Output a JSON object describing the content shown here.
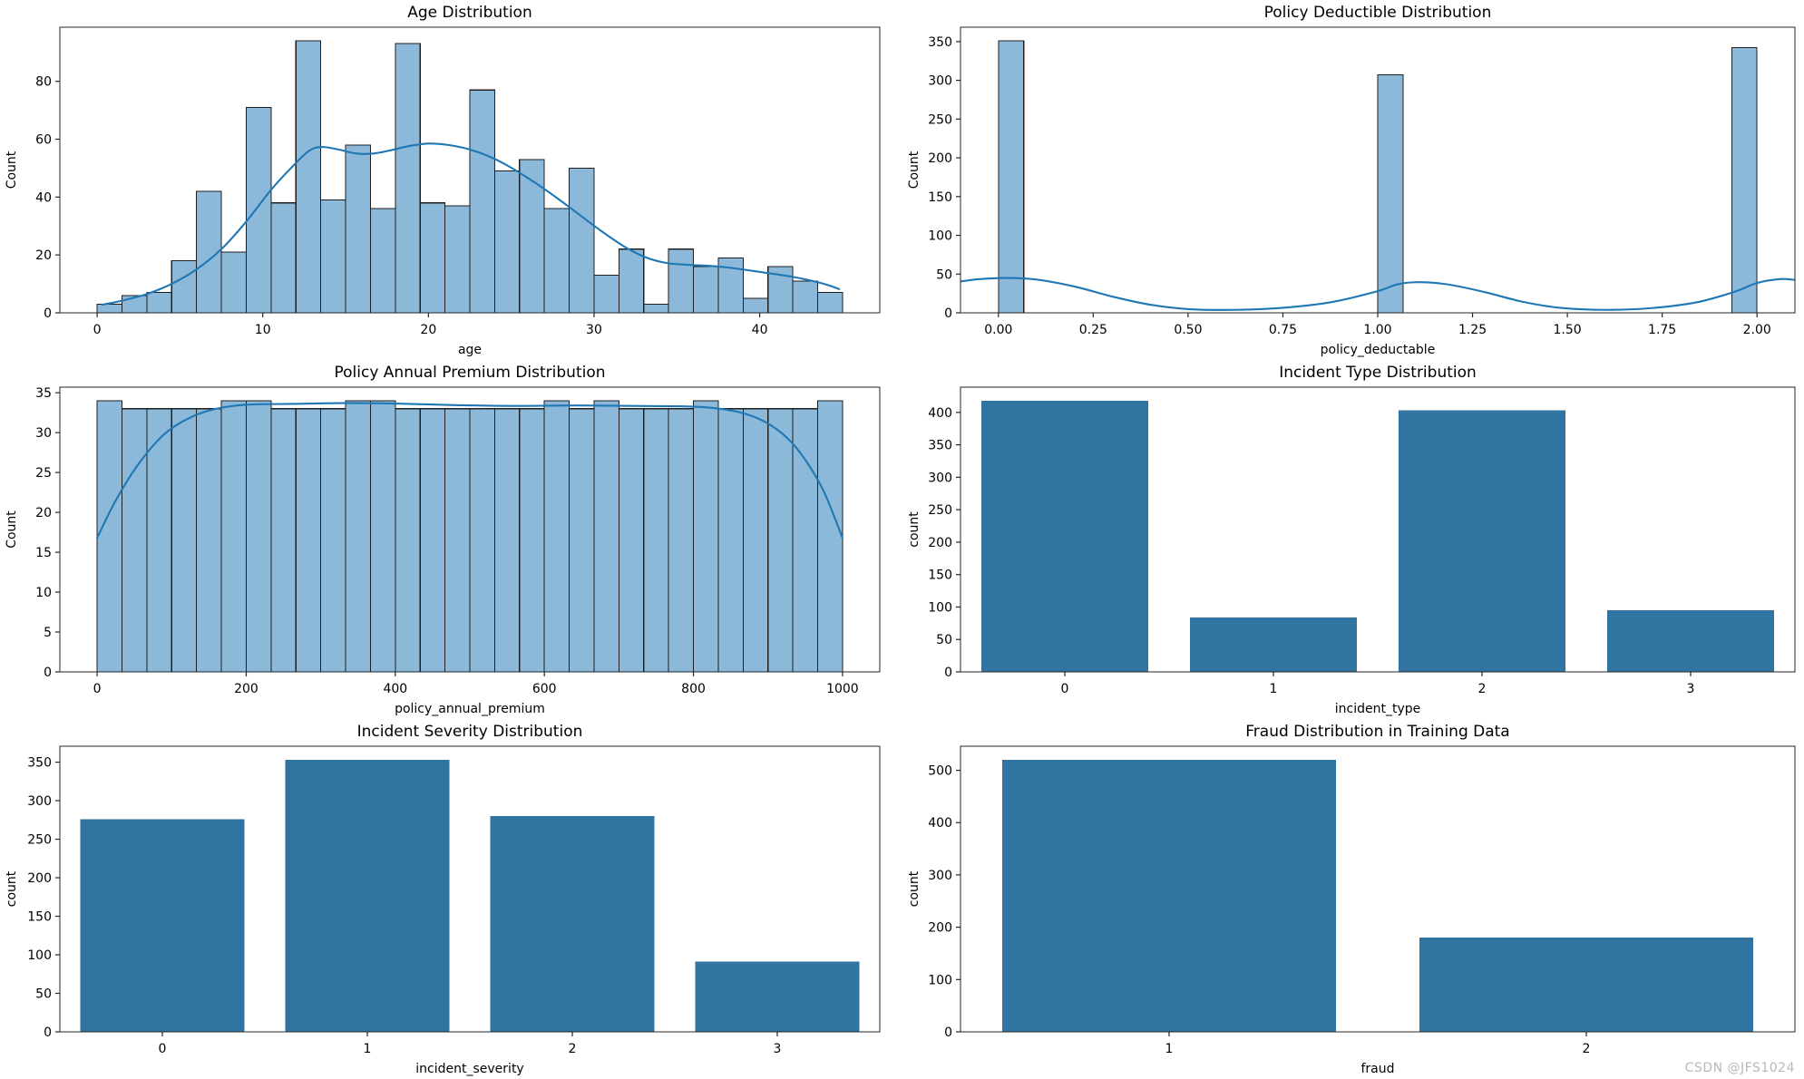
{
  "page": {
    "watermark": "CSDN @JFS1024",
    "background": "#ffffff"
  },
  "colors": {
    "hist_fill": "#8cb9da",
    "hist_edge": "#1f1f1f",
    "kde_line": "#1f77b4",
    "bar_fill": "#3274a1",
    "spine": "#262626",
    "text": "#000000",
    "watermark": "#b9b9b9"
  },
  "chart_data": [
    {
      "type": "histogram_kde",
      "title": "Age Distribution",
      "xlabel": "age",
      "ylabel": "Count",
      "grid": false,
      "legend": null,
      "xlim": [
        -2.25,
        47.25
      ],
      "ylim": [
        0,
        98.7
      ],
      "xticks": {
        "values": [
          0,
          10,
          20,
          30,
          40
        ],
        "labels": [
          "0",
          "10",
          "20",
          "30",
          "40"
        ]
      },
      "yticks": {
        "values": [
          0,
          20,
          40,
          60,
          80
        ],
        "labels": [
          "0",
          "20",
          "40",
          "60",
          "80"
        ]
      },
      "bins": {
        "start": 0,
        "width": 1.5,
        "counts": [
          3,
          6,
          7,
          18,
          42,
          21,
          71,
          38,
          94,
          39,
          58,
          36,
          93,
          38,
          37,
          77,
          49,
          53,
          36,
          50,
          13,
          22,
          3,
          22,
          16,
          19,
          5,
          16,
          11,
          7
        ]
      },
      "kde": [
        [
          0.3,
          2.8
        ],
        [
          1.5,
          4.2
        ],
        [
          3,
          6.5
        ],
        [
          4.5,
          10
        ],
        [
          6,
          15
        ],
        [
          7.5,
          22
        ],
        [
          9,
          31.5
        ],
        [
          10.5,
          42.5
        ],
        [
          11.7,
          50
        ],
        [
          12.8,
          56
        ],
        [
          13.6,
          57.3
        ],
        [
          14.6,
          56.4
        ],
        [
          15.6,
          55.1
        ],
        [
          16.6,
          55
        ],
        [
          17.6,
          56
        ],
        [
          18.8,
          57.6
        ],
        [
          20,
          58.5
        ],
        [
          21.2,
          58
        ],
        [
          22.4,
          56.6
        ],
        [
          23.6,
          54.2
        ],
        [
          24.8,
          50.8
        ],
        [
          26,
          46.6
        ],
        [
          27.2,
          42
        ],
        [
          28.4,
          37
        ],
        [
          29.6,
          31.8
        ],
        [
          30.8,
          26.8
        ],
        [
          32,
          22.3
        ],
        [
          33.2,
          19
        ],
        [
          34.4,
          17.2
        ],
        [
          35.6,
          16.6
        ],
        [
          36.8,
          16.3
        ],
        [
          38,
          15.7
        ],
        [
          39.2,
          14.8
        ],
        [
          40.4,
          13.8
        ],
        [
          41.6,
          12.8
        ],
        [
          42.8,
          11.5
        ],
        [
          44,
          9.8
        ],
        [
          44.8,
          8.2
        ]
      ]
    },
    {
      "type": "histogram_kde",
      "title": "Policy Deductible Distribution",
      "xlabel": "policy_deductable",
      "ylabel": "Count",
      "grid": false,
      "legend": null,
      "xlim": [
        -0.1,
        2.1
      ],
      "ylim": [
        0,
        368.55
      ],
      "xticks": {
        "values": [
          0,
          0.25,
          0.5,
          0.75,
          1.0,
          1.25,
          1.5,
          1.75,
          2.0
        ],
        "labels": [
          "0.00",
          "0.25",
          "0.50",
          "0.75",
          "1.00",
          "1.25",
          "1.50",
          "1.75",
          "2.00"
        ]
      },
      "yticks": {
        "values": [
          0,
          50,
          100,
          150,
          200,
          250,
          300,
          350
        ],
        "labels": [
          "0",
          "50",
          "100",
          "150",
          "200",
          "250",
          "300",
          "350"
        ]
      },
      "bins": {
        "start": 0,
        "width": 0.066667,
        "counts": [
          351,
          0,
          0,
          0,
          0,
          0,
          0,
          0,
          0,
          0,
          0,
          0,
          0,
          0,
          0,
          307,
          0,
          0,
          0,
          0,
          0,
          0,
          0,
          0,
          0,
          0,
          0,
          0,
          0,
          342
        ]
      },
      "kde": [
        [
          -0.1,
          40.5
        ],
        [
          -0.05,
          43.5
        ],
        [
          0.02,
          45
        ],
        [
          0.1,
          43
        ],
        [
          0.2,
          34
        ],
        [
          0.3,
          21
        ],
        [
          0.4,
          10.5
        ],
        [
          0.5,
          4.8
        ],
        [
          0.62,
          3.8
        ],
        [
          0.75,
          6.5
        ],
        [
          0.88,
          14
        ],
        [
          1.0,
          28
        ],
        [
          1.05,
          36.5
        ],
        [
          1.1,
          39.5
        ],
        [
          1.18,
          37
        ],
        [
          1.28,
          27
        ],
        [
          1.38,
          14.5
        ],
        [
          1.48,
          6.5
        ],
        [
          1.6,
          3.8
        ],
        [
          1.72,
          6
        ],
        [
          1.84,
          13.5
        ],
        [
          1.94,
          27
        ],
        [
          2.0,
          38.5
        ],
        [
          2.06,
          43.5
        ],
        [
          2.1,
          42.5
        ]
      ]
    },
    {
      "type": "histogram_kde",
      "title": "Policy Annual Premium Distribution",
      "xlabel": "policy_annual_premium",
      "ylabel": "Count",
      "grid": false,
      "legend": null,
      "xlim": [
        -50,
        1050
      ],
      "ylim": [
        0,
        35.7
      ],
      "xticks": {
        "values": [
          0,
          200,
          400,
          600,
          800,
          1000
        ],
        "labels": [
          "0",
          "200",
          "400",
          "600",
          "800",
          "1000"
        ]
      },
      "yticks": {
        "values": [
          0,
          5,
          10,
          15,
          20,
          25,
          30,
          35
        ],
        "labels": [
          "0",
          "5",
          "10",
          "15",
          "20",
          "25",
          "30",
          "35"
        ]
      },
      "bins": {
        "start": 0,
        "width": 33.3333,
        "counts": [
          34,
          33,
          33,
          33,
          33,
          34,
          34,
          33,
          33,
          33,
          34,
          34,
          33,
          33,
          33,
          33,
          33,
          33,
          34,
          33,
          34,
          33,
          33,
          33,
          34,
          33,
          33,
          33,
          33,
          34
        ]
      },
      "kde": [
        [
          0,
          16.8
        ],
        [
          25,
          21.5
        ],
        [
          55,
          26
        ],
        [
          90,
          29.8
        ],
        [
          125,
          31.9
        ],
        [
          160,
          33
        ],
        [
          200,
          33.5
        ],
        [
          260,
          33.6
        ],
        [
          330,
          33.7
        ],
        [
          400,
          33.65
        ],
        [
          480,
          33.45
        ],
        [
          560,
          33.35
        ],
        [
          640,
          33.4
        ],
        [
          720,
          33.35
        ],
        [
          780,
          33.3
        ],
        [
          820,
          33.15
        ],
        [
          860,
          32.6
        ],
        [
          895,
          31.4
        ],
        [
          925,
          29.4
        ],
        [
          950,
          26.6
        ],
        [
          975,
          22.6
        ],
        [
          1000,
          16.8
        ]
      ]
    },
    {
      "type": "bar",
      "title": "Incident Type Distribution",
      "xlabel": "incident_type",
      "ylabel": "count",
      "grid": false,
      "legend": null,
      "categories": [
        "0",
        "1",
        "2",
        "3"
      ],
      "values": [
        418,
        84,
        403,
        95
      ],
      "bar_width": 0.8,
      "xlim": [
        -0.5,
        3.5
      ],
      "ylim": [
        0,
        438.9
      ],
      "yticks": {
        "values": [
          0,
          50,
          100,
          150,
          200,
          250,
          300,
          350,
          400
        ],
        "labels": [
          "0",
          "50",
          "100",
          "150",
          "200",
          "250",
          "300",
          "350",
          "400"
        ]
      }
    },
    {
      "type": "bar",
      "title": "Incident Severity Distribution",
      "xlabel": "incident_severity",
      "ylabel": "count",
      "grid": false,
      "legend": null,
      "categories": [
        "0",
        "1",
        "2",
        "3"
      ],
      "values": [
        276,
        353,
        280,
        91
      ],
      "bar_width": 0.8,
      "xlim": [
        -0.5,
        3.5
      ],
      "ylim": [
        0,
        370.65
      ],
      "yticks": {
        "values": [
          0,
          50,
          100,
          150,
          200,
          250,
          300,
          350
        ],
        "labels": [
          "0",
          "50",
          "100",
          "150",
          "200",
          "250",
          "300",
          "350"
        ]
      }
    },
    {
      "type": "bar",
      "title": "Fraud Distribution in Training Data",
      "xlabel": "fraud",
      "ylabel": "count",
      "grid": false,
      "legend": null,
      "categories": [
        "1",
        "2"
      ],
      "values": [
        520,
        180
      ],
      "bar_width": 0.8,
      "xlim": [
        -0.5,
        1.5
      ],
      "ylim": [
        0,
        546
      ],
      "yticks": {
        "values": [
          0,
          100,
          200,
          300,
          400,
          500
        ],
        "labels": [
          "0",
          "100",
          "200",
          "300",
          "400",
          "500"
        ]
      }
    }
  ]
}
